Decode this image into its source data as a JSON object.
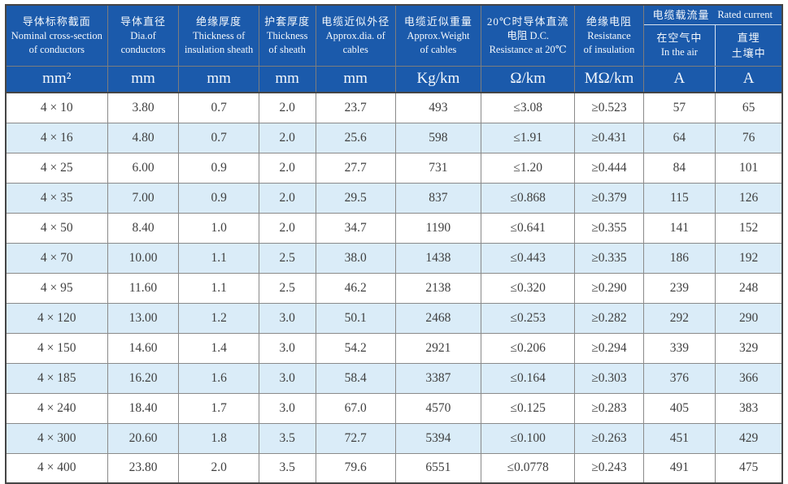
{
  "table": {
    "title_semantic": "cable-specification-table",
    "columns": [
      {
        "l1": "导体标称截面",
        "l2": "Nominal cross-section",
        "l3": "of conductors",
        "unit": "mm²"
      },
      {
        "l1": "导体直径",
        "l2": "Dia.of",
        "l3": "conductors",
        "unit": "mm"
      },
      {
        "l1": "绝缘厚度",
        "l2": "Thickness of",
        "l3": "insulation sheath",
        "unit": "mm"
      },
      {
        "l1": "护套厚度",
        "l2": "Thickness",
        "l3": "of sheath",
        "unit": "mm"
      },
      {
        "l1": "电缆近似外径",
        "l2": "Approx.dia. of",
        "l3": "cables",
        "unit": "mm"
      },
      {
        "l1": "电缆近似重量",
        "l2": "Approx.Weight",
        "l3": "of cables",
        "unit": "Kg/km"
      },
      {
        "l1": "20℃时导体直流",
        "l2": "电阻 D.C.",
        "l3": "Resistance at 20℃",
        "unit": "Ω/km"
      },
      {
        "l1": "绝缘电阻",
        "l2": "Resistance",
        "l3": "of insulation",
        "unit": "MΩ/km"
      }
    ],
    "rated_current_group": {
      "label_zh": "电缆载流量",
      "label_en": "Rated current",
      "sub1_l1": "在空气中",
      "sub1_l2": "In the air",
      "sub1_unit": "A",
      "sub2_l1": "直埋",
      "sub2_l2": "土壤中",
      "sub2_unit": "A"
    },
    "column_ids": [
      "cross-section",
      "conductor-dia",
      "insulation-thickness",
      "sheath-thickness",
      "approx-dia",
      "approx-weight",
      "dc-resistance",
      "insulation-resistance",
      "current-in-air",
      "current-buried"
    ],
    "rows": [
      [
        "4 × 10",
        "3.80",
        "0.7",
        "2.0",
        "23.7",
        "493",
        "≤3.08",
        "≥0.523",
        "57",
        "65"
      ],
      [
        "4 × 16",
        "4.80",
        "0.7",
        "2.0",
        "25.6",
        "598",
        "≤1.91",
        "≥0.431",
        "64",
        "76"
      ],
      [
        "4 × 25",
        "6.00",
        "0.9",
        "2.0",
        "27.7",
        "731",
        "≤1.20",
        "≥0.444",
        "84",
        "101"
      ],
      [
        "4 × 35",
        "7.00",
        "0.9",
        "2.0",
        "29.5",
        "837",
        "≤0.868",
        "≥0.379",
        "115",
        "126"
      ],
      [
        "4 × 50",
        "8.40",
        "1.0",
        "2.0",
        "34.7",
        "1190",
        "≤0.641",
        "≥0.355",
        "141",
        "152"
      ],
      [
        "4 × 70",
        "10.00",
        "1.1",
        "2.5",
        "38.0",
        "1438",
        "≤0.443",
        "≥0.335",
        "186",
        "192"
      ],
      [
        "4 × 95",
        "11.60",
        "1.1",
        "2.5",
        "46.2",
        "2138",
        "≤0.320",
        "≥0.290",
        "239",
        "248"
      ],
      [
        "4 × 120",
        "13.00",
        "1.2",
        "3.0",
        "50.1",
        "2468",
        "≤0.253",
        "≥0.282",
        "292",
        "290"
      ],
      [
        "4 × 150",
        "14.60",
        "1.4",
        "3.0",
        "54.2",
        "2921",
        "≤0.206",
        "≥0.294",
        "339",
        "329"
      ],
      [
        "4 × 185",
        "16.20",
        "1.6",
        "3.0",
        "58.4",
        "3387",
        "≤0.164",
        "≥0.303",
        "376",
        "366"
      ],
      [
        "4 × 240",
        "18.40",
        "1.7",
        "3.0",
        "67.0",
        "4570",
        "≤0.125",
        "≥0.283",
        "405",
        "383"
      ],
      [
        "4 × 300",
        "20.60",
        "1.8",
        "3.5",
        "72.7",
        "5394",
        "≤0.100",
        "≥0.263",
        "451",
        "429"
      ],
      [
        "4 × 400",
        "23.80",
        "2.0",
        "3.5",
        "79.6",
        "6551",
        "≤0.0778",
        "≥0.243",
        "491",
        "475"
      ]
    ]
  },
  "colors": {
    "header_blue": "#1b5aab",
    "zebra_blue": "#daecf8",
    "body_text": "#404040",
    "header_text": "#f4f8fc",
    "outer_border": "#454545",
    "inner_border": "#7d7d7d"
  }
}
